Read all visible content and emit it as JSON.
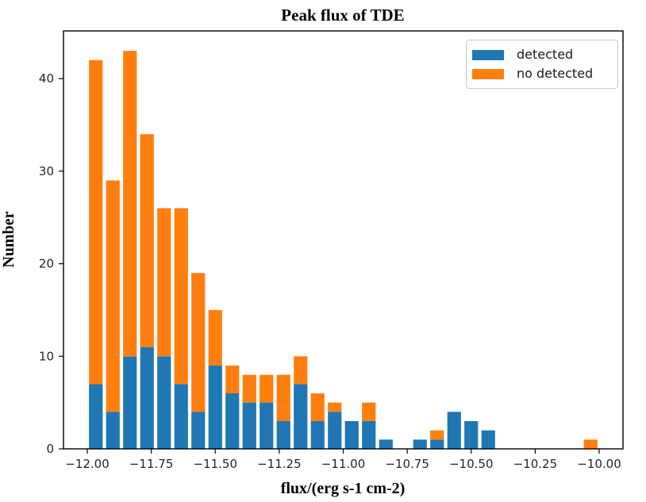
{
  "title": "Peak flux of TDE",
  "chart_data": {
    "type": "bar",
    "subtype": "stacked-histogram",
    "title": "Peak flux of TDE",
    "xlabel": "flux/(erg s-1 cm-2)",
    "ylabel": "Number",
    "grid": false,
    "bin_start": -12.0,
    "bin_width": 0.0666667,
    "n_bins": 30,
    "bar_rwidth": 0.8,
    "series": [
      {
        "name": "detected",
        "color": "#1f77b4",
        "values": [
          7,
          4,
          10,
          11,
          10,
          7,
          4,
          9,
          6,
          5,
          5,
          3,
          7,
          3,
          4,
          3,
          3,
          1,
          0,
          1,
          1,
          4,
          3,
          2,
          0,
          0,
          0,
          0,
          0,
          0
        ]
      },
      {
        "name": "no detected",
        "color": "#ff7f0e",
        "values": [
          35,
          25,
          33,
          23,
          16,
          19,
          15,
          6,
          3,
          3,
          3,
          5,
          3,
          3,
          1,
          0,
          2,
          0,
          0,
          0,
          1,
          0,
          0,
          0,
          0,
          0,
          0,
          0,
          0,
          1
        ]
      }
    ],
    "totals": [
      42,
      29,
      43,
      34,
      26,
      26,
      19,
      15,
      9,
      8,
      8,
      8,
      10,
      6,
      5,
      3,
      5,
      1,
      0,
      1,
      2,
      4,
      3,
      2,
      0,
      0,
      0,
      0,
      0,
      1
    ],
    "xlim": [
      -12.093,
      -9.907
    ],
    "ylim": [
      0,
      45.15
    ],
    "xticks": {
      "values": [
        -12.0,
        -11.75,
        -11.5,
        -11.25,
        -11.0,
        -10.75,
        -10.5,
        -10.25,
        -10.0
      ],
      "labels": [
        "−12.00",
        "−11.75",
        "−11.50",
        "−11.25",
        "−11.00",
        "−10.75",
        "−10.50",
        "−10.25",
        "−10.00"
      ]
    },
    "yticks": {
      "values": [
        0,
        10,
        20,
        30,
        40
      ],
      "labels": [
        "0",
        "10",
        "20",
        "30",
        "40"
      ]
    },
    "legend": {
      "position": "upper right",
      "entries": [
        {
          "label": "detected",
          "color": "#1f77b4"
        },
        {
          "label": "no detected",
          "color": "#ff7f0e"
        }
      ]
    }
  },
  "colors": {
    "detected": "#1f77b4",
    "no_detected": "#ff7f0e",
    "frame": "#000000",
    "background": "#ffffff"
  }
}
